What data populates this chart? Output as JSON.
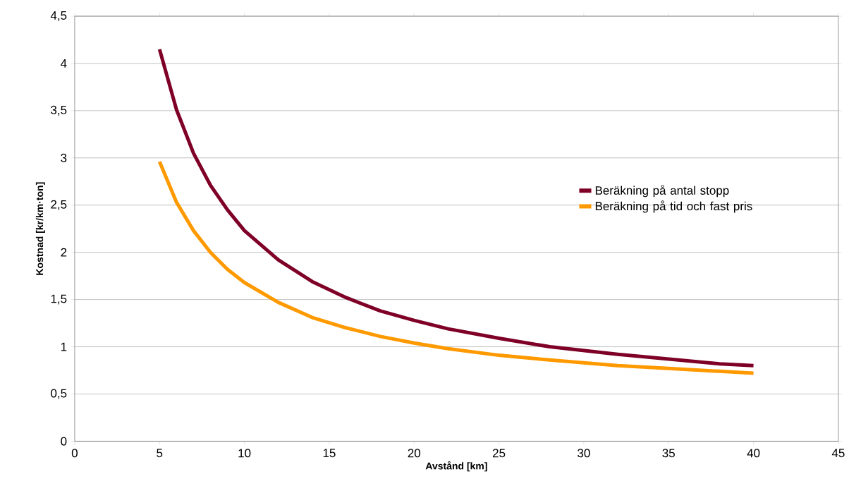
{
  "chart_data": {
    "type": "line",
    "xlabel": "Avstånd [km]",
    "ylabel": "Kostnad [kr/km·ton]",
    "x": [
      5,
      6,
      7,
      8,
      9,
      10,
      12,
      14,
      16,
      18,
      20,
      22,
      25,
      28,
      30,
      32,
      35,
      38,
      40
    ],
    "series": [
      {
        "name": "Beräkning på antal stopp",
        "color": "#7f0027",
        "values": [
          4.15,
          3.51,
          3.05,
          2.71,
          2.45,
          2.23,
          1.92,
          1.69,
          1.52,
          1.38,
          1.28,
          1.19,
          1.09,
          1.0,
          0.96,
          0.92,
          0.87,
          0.82,
          0.8
        ]
      },
      {
        "name": "Beräkning på tid och fast pris",
        "color": "#ff9900",
        "values": [
          2.96,
          2.53,
          2.23,
          2.0,
          1.82,
          1.68,
          1.47,
          1.31,
          1.2,
          1.11,
          1.04,
          0.98,
          0.91,
          0.86,
          0.83,
          0.8,
          0.77,
          0.74,
          0.72
        ]
      }
    ],
    "xlim": [
      0,
      45
    ],
    "xticks": [
      0,
      5,
      10,
      15,
      20,
      25,
      30,
      35,
      40,
      45
    ],
    "ylim": [
      0,
      4.5
    ],
    "yticks": [
      0,
      {
        "value": 0.5,
        "label": "0,5"
      },
      1,
      {
        "value": 1.5,
        "label": "1,5"
      },
      2,
      {
        "value": 2.5,
        "label": "2,5"
      },
      3,
      {
        "value": 3.5,
        "label": "3,5"
      },
      4,
      {
        "value": 4.5,
        "label": "4,5"
      }
    ],
    "grid": "y",
    "legend": "right",
    "marker": "none",
    "line_style": "solid"
  }
}
